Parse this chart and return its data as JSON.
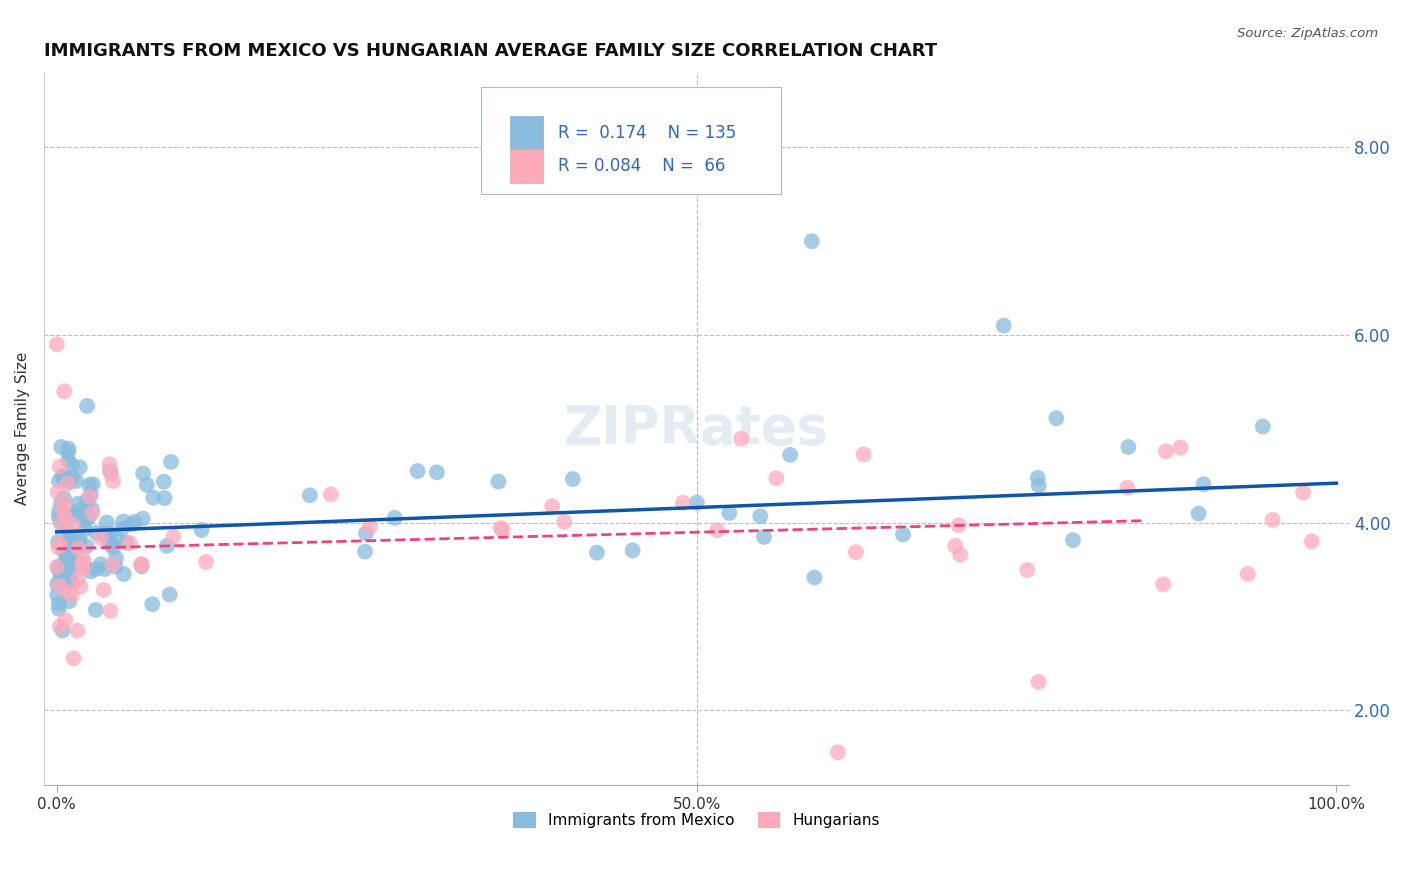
{
  "title": "IMMIGRANTS FROM MEXICO VS HUNGARIAN AVERAGE FAMILY SIZE CORRELATION CHART",
  "source": "Source: ZipAtlas.com",
  "ylabel": "Average Family Size",
  "legend_label1": "Immigrants from Mexico",
  "legend_label2": "Hungarians",
  "r1": "0.174",
  "n1": "135",
  "r2": "0.084",
  "n2": "66",
  "color_blue": "#88BBDD",
  "color_pink": "#FFAABB",
  "line_blue": "#1155AA",
  "line_pink": "#EE4477",
  "watermark": "ZIPRates",
  "xlim": [
    -0.01,
    1.01
  ],
  "ylim": [
    1.2,
    8.8
  ],
  "yticks": [
    2.0,
    4.0,
    6.0,
    8.0
  ],
  "title_fontsize": 13,
  "background_color": "#FFFFFF",
  "trend_blue_x0": 0.0,
  "trend_blue_x1": 1.0,
  "trend_blue_y0": 3.9,
  "trend_blue_y1": 4.42,
  "trend_pink_x0": 0.0,
  "trend_pink_x1": 0.85,
  "trend_pink_y0": 3.72,
  "trend_pink_y1": 4.02
}
